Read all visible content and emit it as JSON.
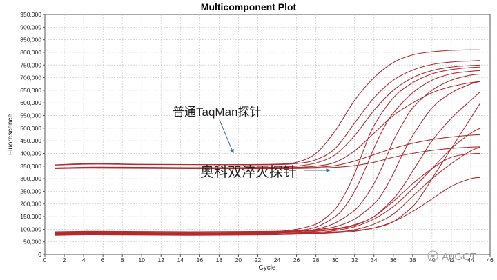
{
  "chart_data": {
    "type": "line",
    "title": "Multicomponent Plot",
    "xlabel": "Cycle",
    "ylabel": "Fluorescence",
    "xlim": [
      0,
      46
    ],
    "ylim": [
      0,
      950000
    ],
    "grid": true,
    "x_ticks": [
      "0",
      "2",
      "4",
      "6",
      "8",
      "10",
      "12",
      "14",
      "16",
      "18",
      "20",
      "22",
      "24",
      "26",
      "28",
      "30",
      "32",
      "34",
      "36",
      "38",
      "40",
      "42",
      "44",
      "46"
    ],
    "y_ticks": [
      "0",
      "50,000",
      "100,000",
      "150,000",
      "200,000",
      "250,000",
      "300,000",
      "350,000",
      "400,000",
      "450,000",
      "500,000",
      "550,000",
      "600,000",
      "650,000",
      "700,000",
      "750,000",
      "800,000",
      "850,000",
      "900,000",
      "950,000"
    ],
    "series_color": "#b22a2e",
    "series": [
      {
        "x": [
          1,
          5,
          10,
          15,
          20,
          24,
          26,
          28,
          30,
          32,
          34,
          36,
          38,
          40,
          42,
          44,
          45
        ],
        "y": [
          355000,
          360000,
          357000,
          356000,
          356000,
          358000,
          365000,
          400000,
          490000,
          610000,
          700000,
          760000,
          790000,
          802000,
          808000,
          810000,
          810000
        ]
      },
      {
        "x": [
          1,
          5,
          10,
          15,
          20,
          24,
          26,
          28,
          30,
          32,
          34,
          36,
          38,
          40,
          42,
          44,
          45
        ],
        "y": [
          354000,
          358000,
          356000,
          356000,
          355000,
          356000,
          360000,
          375000,
          420000,
          520000,
          620000,
          690000,
          730000,
          752000,
          762000,
          766000,
          768000
        ]
      },
      {
        "x": [
          1,
          5,
          10,
          15,
          20,
          24,
          26,
          28,
          30,
          32,
          34,
          36,
          38,
          40,
          42,
          44,
          45
        ],
        "y": [
          342000,
          346000,
          345000,
          344000,
          344000,
          346000,
          350000,
          362000,
          395000,
          470000,
          570000,
          650000,
          700000,
          728000,
          742000,
          748000,
          750000
        ]
      },
      {
        "x": [
          1,
          5,
          10,
          15,
          20,
          24,
          26,
          28,
          30,
          32,
          34,
          36,
          38,
          40,
          42,
          44,
          45
        ],
        "y": [
          342000,
          344000,
          343000,
          343000,
          342000,
          343000,
          345000,
          350000,
          365000,
          410000,
          480000,
          550000,
          600000,
          640000,
          665000,
          680000,
          685000
        ]
      },
      {
        "x": [
          1,
          5,
          10,
          15,
          20,
          25,
          28,
          30,
          32,
          34,
          36,
          38,
          40,
          42,
          44,
          45
        ],
        "y": [
          343000,
          345000,
          344000,
          343000,
          342000,
          342000,
          345000,
          352000,
          370000,
          395000,
          420000,
          440000,
          455000,
          465000,
          472000,
          474000
        ]
      },
      {
        "x": [
          1,
          5,
          10,
          15,
          20,
          25,
          28,
          30,
          32,
          34,
          36,
          38,
          40,
          42,
          44,
          45
        ],
        "y": [
          340000,
          342000,
          341000,
          340000,
          340000,
          340000,
          342000,
          345000,
          352000,
          365000,
          385000,
          400000,
          412000,
          420000,
          425000,
          426000
        ]
      },
      {
        "x": [
          1,
          5,
          10,
          15,
          20,
          24,
          26,
          28,
          29,
          30,
          31,
          32,
          33,
          34,
          36,
          38,
          40,
          42,
          44,
          45
        ],
        "y": [
          88000,
          90000,
          89000,
          88000,
          90000,
          92000,
          100000,
          120000,
          145000,
          180000,
          240000,
          320000,
          420000,
          510000,
          620000,
          680000,
          715000,
          732000,
          740000,
          742000
        ]
      },
      {
        "x": [
          1,
          5,
          10,
          15,
          20,
          24,
          26,
          28,
          30,
          31,
          32,
          33,
          34,
          35,
          36,
          38,
          40,
          42,
          44,
          45
        ],
        "y": [
          85000,
          87000,
          86000,
          85000,
          86000,
          88000,
          94000,
          108000,
          150000,
          190000,
          250000,
          330000,
          420000,
          500000,
          560000,
          640000,
          690000,
          715000,
          725000,
          728000
        ]
      },
      {
        "x": [
          1,
          5,
          10,
          15,
          20,
          24,
          26,
          28,
          30,
          32,
          33,
          34,
          35,
          36,
          37,
          38,
          40,
          42,
          44,
          45
        ],
        "y": [
          82000,
          84000,
          83000,
          82000,
          83000,
          85000,
          90000,
          100000,
          125000,
          175000,
          220000,
          280000,
          360000,
          450000,
          520000,
          580000,
          650000,
          690000,
          710000,
          714000
        ]
      },
      {
        "x": [
          1,
          5,
          10,
          15,
          20,
          24,
          26,
          28,
          30,
          32,
          34,
          35,
          36,
          37,
          38,
          40,
          42,
          44,
          45
        ],
        "y": [
          90000,
          92000,
          91000,
          90000,
          91000,
          92000,
          94000,
          98000,
          110000,
          140000,
          200000,
          250000,
          320000,
          400000,
          470000,
          580000,
          640000,
          675000,
          685000
        ]
      },
      {
        "x": [
          1,
          5,
          10,
          15,
          20,
          24,
          26,
          28,
          30,
          32,
          34,
          36,
          37,
          38,
          39,
          40,
          42,
          44,
          45
        ],
        "y": [
          88000,
          90000,
          89000,
          88000,
          89000,
          90000,
          92000,
          95000,
          102000,
          118000,
          150000,
          220000,
          270000,
          330000,
          390000,
          450000,
          540000,
          610000,
          645000
        ]
      },
      {
        "x": [
          1,
          5,
          10,
          15,
          20,
          24,
          26,
          28,
          30,
          32,
          34,
          36,
          38,
          40,
          42,
          44,
          45
        ],
        "y": [
          80000,
          82000,
          81000,
          80000,
          81000,
          82000,
          84000,
          87000,
          95000,
          110000,
          140000,
          190000,
          260000,
          340000,
          420000,
          480000,
          500000
        ]
      },
      {
        "x": [
          1,
          5,
          10,
          15,
          20,
          24,
          26,
          28,
          30,
          32,
          34,
          36,
          38,
          40,
          42,
          44,
          45
        ],
        "y": [
          78000,
          80000,
          79000,
          78000,
          79000,
          80000,
          82000,
          84000,
          88000,
          98000,
          120000,
          160000,
          230000,
          300000,
          360000,
          410000,
          425000
        ]
      },
      {
        "x": [
          1,
          5,
          10,
          15,
          20,
          24,
          26,
          28,
          30,
          32,
          34,
          36,
          38,
          39,
          40,
          42,
          44,
          45
        ],
        "y": [
          85000,
          86000,
          85000,
          84000,
          85000,
          86000,
          87000,
          88000,
          90000,
          95000,
          105000,
          130000,
          190000,
          240000,
          300000,
          420000,
          540000,
          600000
        ]
      },
      {
        "x": [
          1,
          5,
          10,
          15,
          20,
          24,
          26,
          28,
          30,
          32,
          34,
          36,
          38,
          40,
          42,
          44,
          45
        ],
        "y": [
          76000,
          78000,
          77000,
          76000,
          77000,
          78000,
          80000,
          82000,
          86000,
          92000,
          105000,
          130000,
          170000,
          220000,
          270000,
          300000,
          305000
        ]
      },
      {
        "x": [
          1,
          5,
          10,
          15,
          20,
          24,
          26,
          28,
          30,
          32,
          34,
          36,
          38,
          40,
          42,
          44,
          45
        ],
        "y": [
          84000,
          86000,
          85000,
          84000,
          85000,
          86000,
          88000,
          92000,
          100000,
          115000,
          150000,
          210000,
          280000,
          340000,
          385000,
          398000,
          400000
        ]
      }
    ],
    "annotations": [
      {
        "text": "普通TaqMan探针",
        "target": {
          "x": 20.5,
          "y": 350000
        }
      },
      {
        "text": "奥科双淬灭探针",
        "target": {
          "x": 30.5,
          "y": 300000
        }
      }
    ]
  },
  "watermark": "AuGCT"
}
